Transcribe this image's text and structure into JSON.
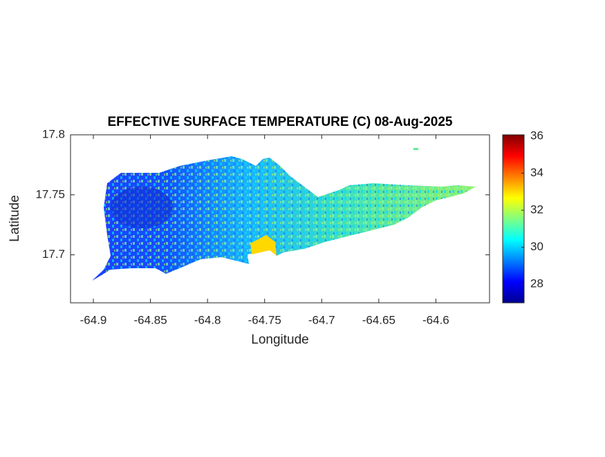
{
  "chart_data": {
    "type": "heatmap",
    "title": "EFFECTIVE SURFACE TEMPERATURE (C) 08-Aug-2025",
    "xlabel": "Longitude",
    "ylabel": "Latitude",
    "xlim": [
      -64.92,
      -64.553
    ],
    "xticks": [
      -64.9,
      -64.85,
      -64.8,
      -64.75,
      -64.7,
      -64.65,
      -64.6
    ],
    "ylim": [
      17.66,
      17.8
    ],
    "yticks": [
      17.7,
      17.75,
      17.8
    ],
    "colormap": "jet",
    "clim": [
      27,
      36.07
    ],
    "cticks": [
      28,
      30,
      32,
      34,
      36
    ]
  }
}
